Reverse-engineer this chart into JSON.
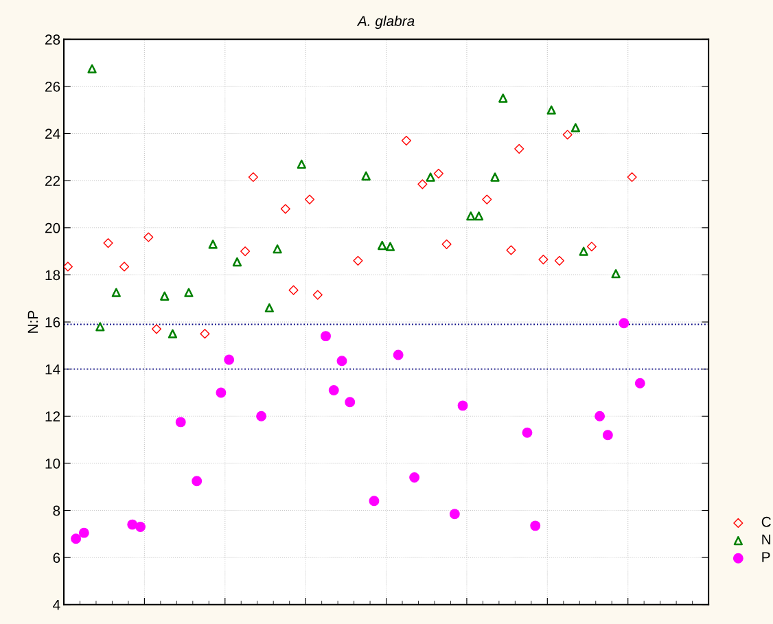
{
  "chart_data": {
    "type": "scatter",
    "title": "A. glabra",
    "ylabel": "N:P",
    "categories": [
      null,
      null,
      null,
      null,
      null,
      null,
      null,
      null,
      null,
      null,
      null,
      null,
      null,
      null,
      null,
      null,
      null,
      null,
      null,
      null,
      null,
      null,
      null,
      null,
      null,
      null,
      null,
      null,
      null,
      null,
      null,
      null,
      null,
      null,
      null,
      null,
      null,
      null,
      null,
      null,
      null,
      null,
      null,
      null,
      null,
      null,
      null,
      null,
      null,
      null,
      null,
      null,
      null,
      null,
      null,
      null,
      null,
      null,
      null,
      null,
      null,
      null,
      null,
      null,
      null,
      null,
      null,
      null,
      null,
      null,
      null,
      null,
      null,
      null,
      null,
      null,
      null,
      null,
      null,
      null
    ],
    "ylim": [
      4,
      28
    ],
    "yticks": [
      4,
      6,
      8,
      10,
      12,
      14,
      16,
      18,
      20,
      22,
      24,
      26,
      28
    ],
    "grid": true,
    "legend": "right",
    "series": [
      {
        "name": "C",
        "color": "#ff0000",
        "marker": "diamond",
        "values": [
          18.35,
          null,
          null,
          null,
          null,
          19.35,
          null,
          18.35,
          null,
          null,
          19.6,
          15.7,
          null,
          null,
          null,
          null,
          null,
          15.5,
          null,
          null,
          null,
          null,
          19.0,
          22.15,
          null,
          null,
          null,
          20.8,
          17.35,
          null,
          21.2,
          17.15,
          null,
          null,
          null,
          null,
          18.6,
          null,
          null,
          null,
          null,
          null,
          23.7,
          null,
          21.85,
          null,
          22.3,
          19.3,
          null,
          null,
          null,
          null,
          21.2,
          null,
          null,
          19.05,
          23.35,
          null,
          null,
          18.65,
          null,
          18.6,
          23.95,
          null,
          null,
          19.2,
          null,
          null,
          null,
          null,
          22.15,
          null,
          null,
          null,
          null,
          null,
          null,
          null,
          null,
          null
        ]
      },
      {
        "name": "N",
        "color": "#008000",
        "marker": "triangle",
        "values": [
          null,
          null,
          null,
          26.75,
          15.8,
          null,
          17.25,
          null,
          null,
          null,
          null,
          null,
          17.1,
          15.5,
          null,
          17.25,
          null,
          null,
          19.3,
          null,
          null,
          18.55,
          null,
          null,
          null,
          16.6,
          19.1,
          null,
          null,
          22.7,
          null,
          null,
          null,
          null,
          null,
          null,
          null,
          22.2,
          null,
          19.25,
          19.2,
          null,
          null,
          null,
          null,
          22.15,
          null,
          null,
          null,
          null,
          20.5,
          20.5,
          null,
          22.15,
          25.5,
          null,
          null,
          null,
          null,
          null,
          25.0,
          null,
          null,
          24.25,
          19.0,
          null,
          null,
          null,
          18.05,
          null,
          null,
          null,
          null,
          null,
          null,
          null,
          null,
          null,
          null,
          null
        ]
      },
      {
        "name": "P",
        "color": "#ff00ff",
        "marker": "circle",
        "values": [
          null,
          6.8,
          7.05,
          null,
          null,
          null,
          null,
          null,
          7.4,
          7.3,
          null,
          null,
          null,
          null,
          11.75,
          null,
          9.25,
          null,
          null,
          13.0,
          14.4,
          null,
          null,
          null,
          12.0,
          null,
          null,
          null,
          null,
          null,
          null,
          null,
          15.4,
          13.1,
          14.35,
          12.6,
          null,
          null,
          8.4,
          null,
          null,
          14.6,
          null,
          9.4,
          null,
          null,
          null,
          null,
          7.85,
          12.45,
          null,
          null,
          null,
          null,
          null,
          null,
          null,
          11.3,
          7.35,
          null,
          null,
          null,
          null,
          null,
          null,
          null,
          12.0,
          11.2,
          null,
          15.95,
          null,
          13.4,
          null,
          null,
          null,
          null,
          null,
          null,
          null,
          null
        ]
      }
    ],
    "ref_lines": [
      {
        "axis": "y",
        "value": 15.9,
        "color": "#000080",
        "line_style": "dotted"
      },
      {
        "axis": "y",
        "value": 14,
        "color": "#000080",
        "line_style": "dotted"
      }
    ]
  }
}
